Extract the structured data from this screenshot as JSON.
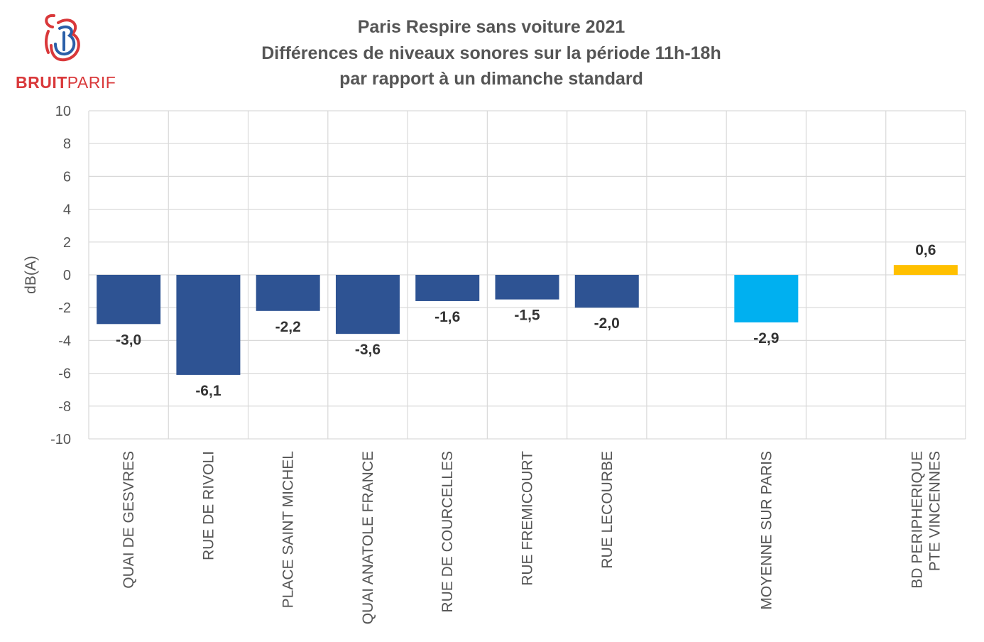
{
  "logo": {
    "word_bold": "BRUIT",
    "word_light": "PARIF",
    "color": "#d9383a",
    "accent_color": "#2b5fa8"
  },
  "chart_data": {
    "type": "bar",
    "title_lines": [
      "Paris Respire sans voiture 2021",
      "Différences de niveaux sonores sur la période 11h-18h",
      "par rapport à un dimanche standard"
    ],
    "ylabel": "dB(A)",
    "xlabel": "",
    "ylim": [
      -10,
      10
    ],
    "yticks": [
      10,
      8,
      6,
      4,
      2,
      0,
      -2,
      -4,
      -6,
      -8,
      -10
    ],
    "grid": true,
    "categories": [
      [
        "QUAI DE GESVRES"
      ],
      [
        "RUE DE RIVOLI"
      ],
      [
        "PLACE SAINT MICHEL"
      ],
      [
        "QUAI ANATOLE FRANCE"
      ],
      [
        "RUE DE COURCELLES"
      ],
      [
        "RUE FREMICOURT"
      ],
      [
        "RUE LECOURBE"
      ],
      [],
      [
        "MOYENNE SUR PARIS"
      ],
      [],
      [
        "BD PERIPHERIQUE",
        "PTE VINCENNES"
      ]
    ],
    "values": [
      -3.0,
      -6.1,
      -2.2,
      -3.6,
      -1.6,
      -1.5,
      -2.0,
      null,
      -2.9,
      null,
      0.6
    ],
    "data_labels": [
      "-3,0",
      "-6,1",
      "-2,2",
      "-3,6",
      "-1,6",
      "-1,5",
      "-2,0",
      "",
      "-2,9",
      "",
      "0,6"
    ],
    "bar_colors": [
      "#2e5393",
      "#2e5393",
      "#2e5393",
      "#2e5393",
      "#2e5393",
      "#2e5393",
      "#2e5393",
      "",
      "#00b0f0",
      "",
      "#ffc000"
    ]
  }
}
